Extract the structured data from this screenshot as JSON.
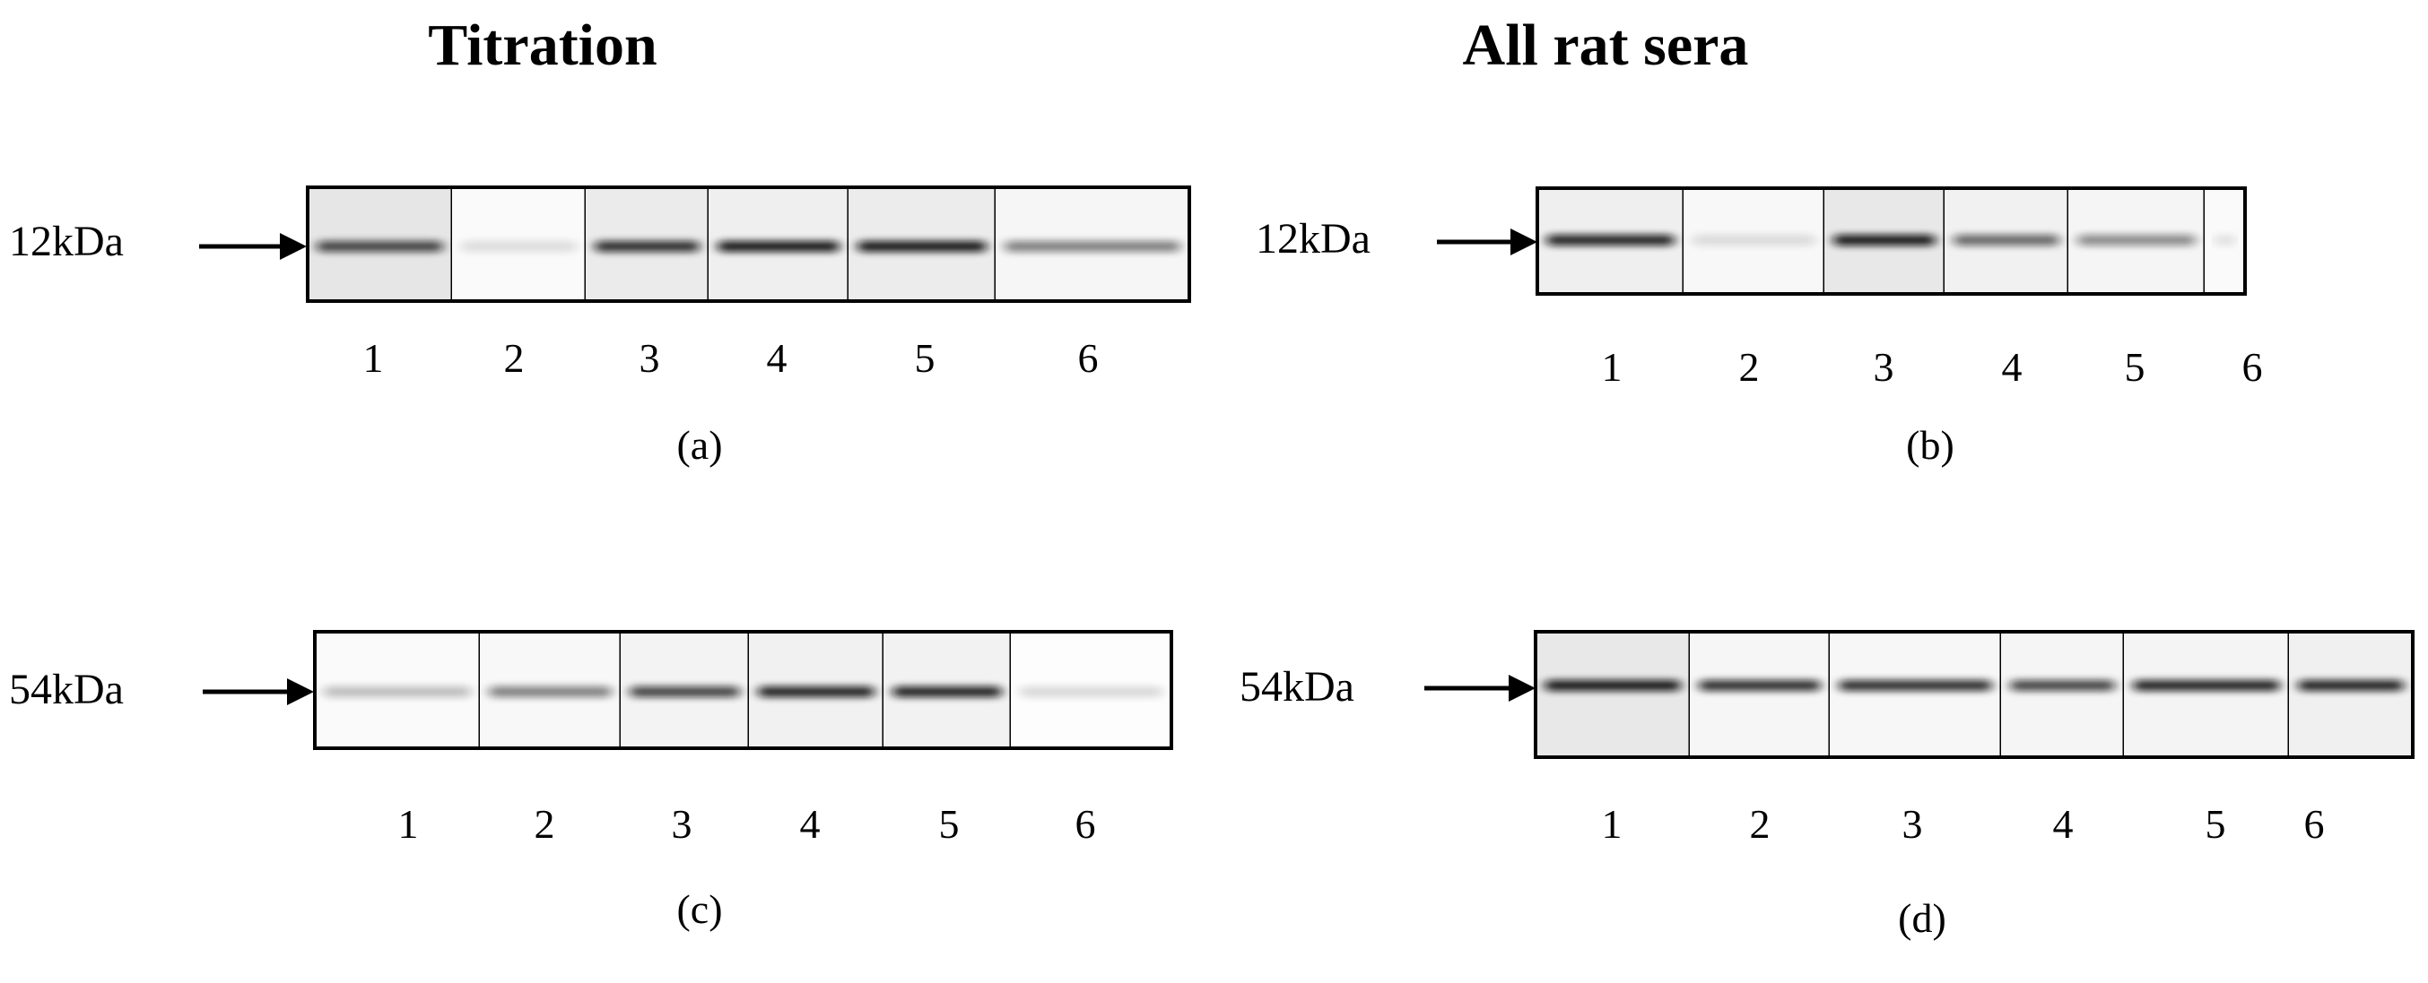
{
  "headings": {
    "left": "Titration",
    "right": "All rat sera"
  },
  "panels": [
    {
      "id": "a",
      "marker": "12kDa",
      "caption": "(a)",
      "lanes": [
        "1",
        "2",
        "3",
        "4",
        "5",
        "6"
      ],
      "band_intensity": [
        0.75,
        0.12,
        0.85,
        0.95,
        0.95,
        0.5
      ]
    },
    {
      "id": "b",
      "marker": "12kDa",
      "caption": "(b)",
      "lanes": [
        "1",
        "2",
        "3",
        "4",
        "5",
        "6"
      ],
      "band_intensity": [
        0.9,
        0.12,
        0.95,
        0.6,
        0.45,
        0.1
      ]
    },
    {
      "id": "c",
      "marker": "54kDa",
      "caption": "(c)",
      "lanes": [
        "1",
        "2",
        "3",
        "4",
        "5",
        "6"
      ],
      "band_intensity": [
        0.25,
        0.5,
        0.75,
        0.9,
        0.9,
        0.15
      ]
    },
    {
      "id": "d",
      "marker": "54kDa",
      "caption": "(d)",
      "lanes": [
        "1",
        "2",
        "3",
        "4",
        "5",
        "6"
      ],
      "band_intensity": [
        0.95,
        0.85,
        0.85,
        0.75,
        0.9,
        0.9
      ]
    }
  ]
}
